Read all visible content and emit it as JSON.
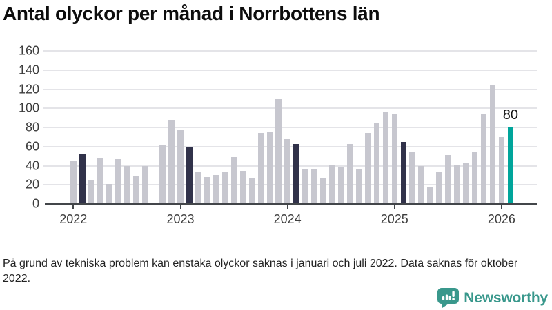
{
  "title": "Antal olyckor per månad i Norrbottens län",
  "footnote": "På grund av tekniska problem kan enstaka olyckor saknas i januari och juli 2022. Data saknas för oktober 2022.",
  "branding": {
    "logo_text": "Newsworthy",
    "logo_icon": "newsworthy-speech-bubble-chart-icon",
    "logo_color": "#39988c"
  },
  "chart_data": {
    "type": "bar",
    "title": "Antal olyckor per månad i Norrbottens län",
    "x_start_month": "2022-01",
    "x_end_month": "2026-02",
    "categories_note": "one bar per month, Jan 2022 - Feb 2026; null = missing month (Oct 2022)",
    "values": [
      45,
      53,
      25,
      48,
      21,
      47,
      40,
      29,
      40,
      null,
      61,
      88,
      77,
      60,
      34,
      28,
      30,
      33,
      49,
      35,
      27,
      74,
      75,
      110,
      68,
      63,
      37,
      37,
      27,
      41,
      38,
      63,
      37,
      74,
      85,
      96,
      94,
      65,
      54,
      40,
      18,
      33,
      51,
      41,
      43,
      55,
      94,
      125,
      70,
      80
    ],
    "highlight_dark_indexes": [
      1,
      13,
      25,
      37
    ],
    "highlight_dark_meaning": "February of each previous year",
    "accent_index": 49,
    "accent_meaning": "latest month (February 2026)",
    "annotation": {
      "index": 49,
      "text": "80"
    },
    "year_ticks": [
      {
        "label": "2022",
        "index": 0
      },
      {
        "label": "2023",
        "index": 12
      },
      {
        "label": "2024",
        "index": 24
      },
      {
        "label": "2025",
        "index": 36
      },
      {
        "label": "2026",
        "index": 48
      }
    ],
    "y_ticks": [
      0,
      20,
      40,
      60,
      80,
      100,
      120,
      140,
      160
    ],
    "ylim": [
      0,
      160
    ],
    "xlabel": "",
    "ylabel": "",
    "grid": "horizontal",
    "legend": "none",
    "colors": {
      "bar_default": "#c7c7cf",
      "bar_highlight_dark": "#31324a",
      "bar_accent": "#00a59b",
      "gridline": "#e4e4e8",
      "axis": "#43464a"
    }
  }
}
